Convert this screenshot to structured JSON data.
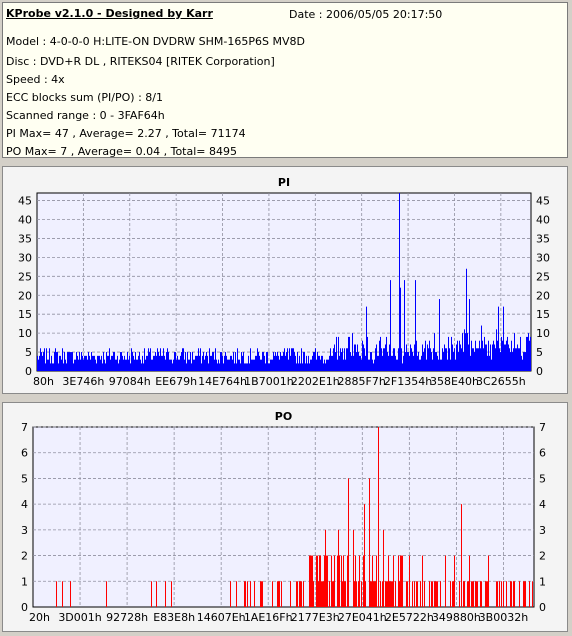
{
  "header": {
    "app_title": "KProbe v2.1.0 - Designed by Karr",
    "date": "Date : 2006/05/05 20:17:50",
    "lines": [
      "Model : 4-0-0-0 H:LITE-ON DVDRW SHM-165P6S MV8D",
      "Disc : DVD+R DL , RITEKS04 [RITEK Corporation]",
      "Speed : 4x",
      "ECC blocks sum (PI/PO) : 8/1",
      "Scanned range : 0 - 3FAF64h",
      "PI Max= 47 , Average= 2.27 , Total= 71174",
      "PO Max= 7 , Average= 0.04 , Total= 8495"
    ]
  },
  "chart_data": [
    {
      "type": "bar",
      "title": "PI",
      "color": "#0000ff",
      "ylim": [
        0,
        47
      ],
      "yticks": [
        0,
        5,
        10,
        15,
        20,
        25,
        30,
        35,
        40,
        45
      ],
      "xticks": [
        "80h",
        "3E746h",
        "97084h",
        "EE679h",
        "14E764h",
        "1B7001h",
        "2202E1h",
        "2885F7h",
        "2F1354h",
        "358E40h",
        "3C2655h"
      ],
      "grid": true,
      "summary": {
        "max": 47,
        "average": 2.27,
        "total": 71174
      },
      "spikes": [
        {
          "position": 0.735,
          "value": 47
        },
        {
          "position": 0.87,
          "value": 27
        },
        {
          "position": 0.716,
          "value": 24
        },
        {
          "position": 0.745,
          "value": 24
        },
        {
          "position": 0.767,
          "value": 24
        },
        {
          "position": 0.736,
          "value": 22
        },
        {
          "position": 0.815,
          "value": 19
        },
        {
          "position": 0.877,
          "value": 19
        },
        {
          "position": 0.945,
          "value": 17
        },
        {
          "position": 0.667,
          "value": 17
        },
        {
          "position": 0.935,
          "value": 17
        }
      ]
    },
    {
      "type": "bar",
      "title": "PO",
      "color": "#ff0000",
      "ylim": [
        0,
        7
      ],
      "yticks": [
        0,
        1,
        2,
        3,
        4,
        5,
        6,
        7
      ],
      "xticks": [
        "20h",
        "3D001h",
        "92728h",
        "E83E8h",
        "14607Eh",
        "1AE16Fh",
        "2177E3h",
        "27E041h",
        "2E5722h",
        "349880h",
        "3B0032h"
      ],
      "grid": true,
      "summary": {
        "max": 7,
        "average": 0.04,
        "total": 8495
      },
      "spikes": [
        {
          "position": 0.69,
          "value": 7
        },
        {
          "position": 0.63,
          "value": 5
        },
        {
          "position": 0.672,
          "value": 5
        },
        {
          "position": 0.662,
          "value": 4
        },
        {
          "position": 0.855,
          "value": 4
        },
        {
          "position": 0.584,
          "value": 3
        },
        {
          "position": 0.61,
          "value": 3
        },
        {
          "position": 0.64,
          "value": 3
        },
        {
          "position": 0.7,
          "value": 3
        }
      ]
    }
  ]
}
